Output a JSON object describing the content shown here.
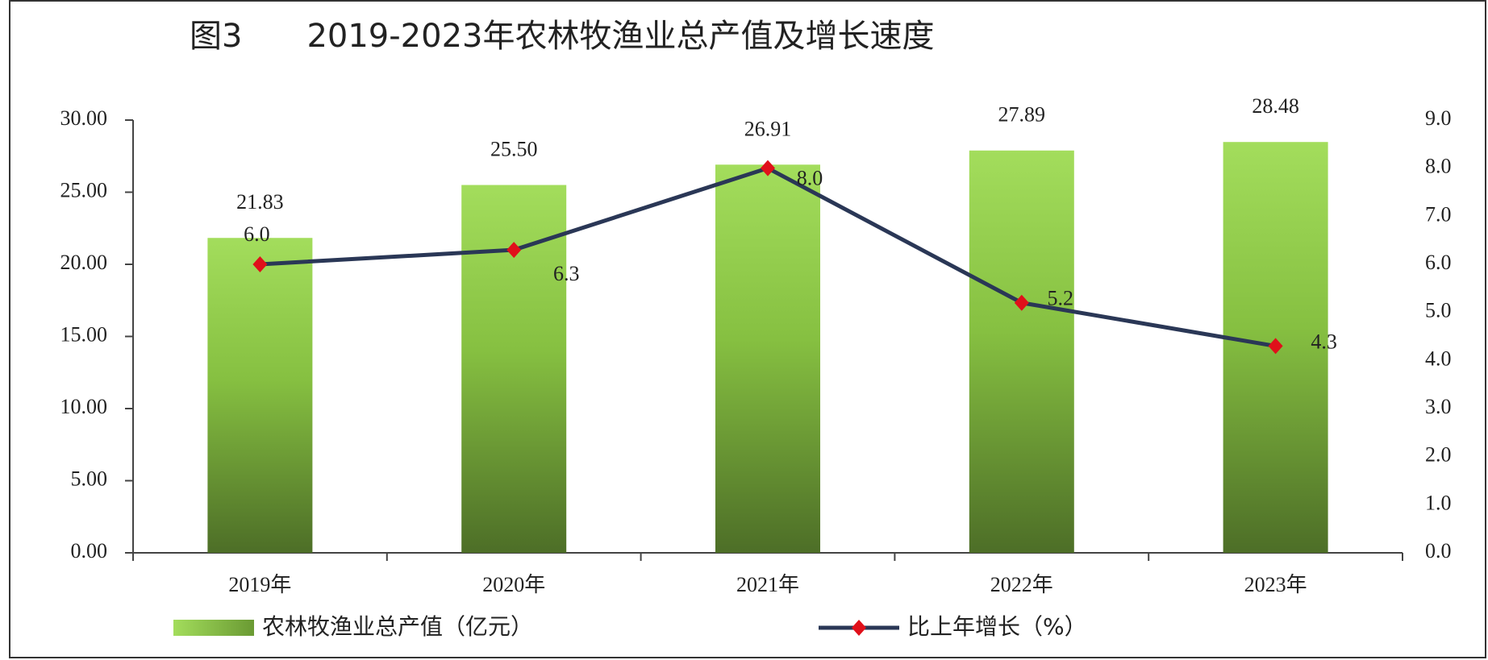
{
  "chart_data": {
    "type": "bar-line",
    "title": "图3　　2019-2023年农林牧渔业总产值及增长速度",
    "categories": [
      "2019年",
      "2020年",
      "2021年",
      "2022年",
      "2023年"
    ],
    "series": [
      {
        "name": "农林牧渔业总产值（亿元）",
        "type": "bar",
        "color": "#7fbf3f",
        "values": [
          21.83,
          25.5,
          26.91,
          27.89,
          28.48
        ],
        "value_labels": [
          "21.83",
          "25.50",
          "26.91",
          "27.89",
          "28.48"
        ]
      },
      {
        "name": "比上年增长（%）",
        "type": "line",
        "axis": "y2",
        "color": "#2a3756",
        "marker_color": "#e0101a",
        "values": [
          6.0,
          6.3,
          8.0,
          5.2,
          4.3
        ],
        "value_labels": [
          "6.0",
          "6.3",
          "8.0",
          "5.2",
          "4.3"
        ]
      }
    ],
    "ylim": [
      0,
      30
    ],
    "yticks": [
      {
        "value": 0,
        "label": "0.00"
      },
      {
        "value": 5,
        "label": "5.00"
      },
      {
        "value": 10,
        "label": "10.00"
      },
      {
        "value": 15,
        "label": "15.00"
      },
      {
        "value": 20,
        "label": "20.00"
      },
      {
        "value": 25,
        "label": "25.00"
      },
      {
        "value": 30,
        "label": "30.00"
      }
    ],
    "y2lim": [
      0,
      9
    ],
    "y2ticks": [
      {
        "value": 0,
        "label": "0.0"
      },
      {
        "value": 1,
        "label": "1.0"
      },
      {
        "value": 2,
        "label": "2.0"
      },
      {
        "value": 3,
        "label": "3.0"
      },
      {
        "value": 4,
        "label": "4.0"
      },
      {
        "value": 5,
        "label": "5.0"
      },
      {
        "value": 6,
        "label": "6.0"
      },
      {
        "value": 7,
        "label": "7.0"
      },
      {
        "value": 8,
        "label": "8.0"
      },
      {
        "value": 9,
        "label": "9.0"
      }
    ],
    "grid": false,
    "legend": "bottom"
  }
}
